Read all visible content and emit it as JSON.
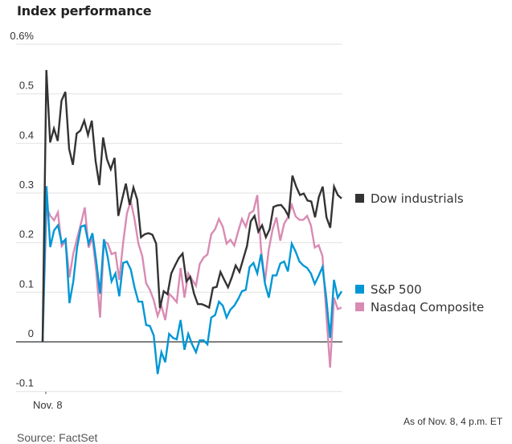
{
  "chart_data": {
    "type": "line",
    "title": "Index performance",
    "xlabel": "",
    "ylabel": "",
    "x_tick_labels": [
      "Nov. 8"
    ],
    "y_ticks": [
      -0.1,
      0,
      0.1,
      0.2,
      0.3,
      0.4,
      0.5,
      0.6
    ],
    "y_tick_labels": [
      "-0.1",
      "0",
      "0.1",
      "0.2",
      "0.3",
      "0.4",
      "0.5",
      "0.6%"
    ],
    "ylim": [
      -0.1,
      0.6
    ],
    "grid": true,
    "legend_placement": "right, beside line ends",
    "note": "As of Nov. 8, 4 p.m. ET",
    "source": "Source: FactSet",
    "series": [
      {
        "name": "Dow industrials",
        "color": "#333333",
        "values": [
          0,
          0.548,
          0.402,
          0.43,
          0.405,
          0.486,
          0.504,
          0.389,
          0.357,
          0.42,
          0.426,
          0.446,
          0.417,
          0.446,
          0.365,
          0.316,
          0.412,
          0.368,
          0.348,
          0.371,
          0.254,
          0.287,
          0.319,
          0.276,
          0.311,
          0.287,
          0.211,
          0.217,
          0.219,
          0.216,
          0.198,
          0.068,
          0.102,
          0.096,
          0.138,
          0.154,
          0.169,
          0.178,
          0.122,
          0.131,
          0.097,
          0.076,
          0.076,
          0.073,
          0.069,
          0.109,
          0.111,
          0.141,
          0.125,
          0.11,
          0.13,
          0.154,
          0.141,
          0.167,
          0.193,
          0.243,
          0.254,
          0.222,
          0.235,
          0.211,
          0.227,
          0.272,
          0.275,
          0.276,
          0.267,
          0.253,
          0.335,
          0.313,
          0.296,
          0.299,
          0.285,
          0.283,
          0.251,
          0.292,
          0.313,
          0.251,
          0.23,
          0.313,
          0.296,
          0.289
        ]
      },
      {
        "name": "S&P 500",
        "color": "#0097d6",
        "values": [
          0,
          0.314,
          0.191,
          0.225,
          0.235,
          0.199,
          0.207,
          0.078,
          0.122,
          0.19,
          0.232,
          0.235,
          0.198,
          0.219,
          0.162,
          0.097,
          0.207,
          0.17,
          0.122,
          0.138,
          0.092,
          0.159,
          0.162,
          0.146,
          0.109,
          0.081,
          0.081,
          0.034,
          0.032,
          0.013,
          -0.065,
          -0.021,
          -0.041,
          0.016,
          0.008,
          0.005,
          0.044,
          -0.016,
          0.016,
          -0.005,
          -0.021,
          0.003,
          0.003,
          -0.005,
          0.049,
          0.054,
          0.081,
          0.073,
          0.049,
          0.065,
          0.073,
          0.086,
          0.102,
          0.105,
          0.151,
          0.159,
          0.138,
          0.177,
          0.118,
          0.089,
          0.134,
          0.134,
          0.158,
          0.162,
          0.142,
          0.198,
          0.182,
          0.162,
          0.154,
          0.149,
          0.138,
          0.117,
          0.133,
          0.151,
          0.089,
          0.008,
          0.125,
          0.089,
          0.102
        ]
      },
      {
        "name": "Nasdaq Composite",
        "color": "#d98bb3",
        "values": [
          0,
          0.271,
          0.254,
          0.245,
          0.261,
          0.193,
          0.203,
          0.13,
          0.178,
          0.209,
          0.238,
          0.271,
          0.19,
          0.209,
          0.141,
          0.049,
          0.203,
          0.198,
          0.177,
          0.18,
          0.125,
          0.2,
          0.259,
          0.284,
          0.246,
          0.198,
          0.173,
          0.118,
          0.105,
          0.084,
          0.052,
          0.073,
          0.044,
          0.097,
          0.089,
          0.08,
          0.149,
          0.089,
          0.138,
          0.125,
          0.113,
          0.157,
          0.17,
          0.176,
          0.217,
          0.227,
          0.248,
          0.232,
          0.198,
          0.206,
          0.194,
          0.222,
          0.248,
          0.232,
          0.259,
          0.264,
          0.296,
          0.186,
          0.122,
          0.186,
          0.227,
          0.251,
          0.204,
          0.238,
          0.251,
          0.276,
          0.253,
          0.246,
          0.246,
          0.254,
          0.235,
          0.19,
          0.195,
          0.173,
          0.057,
          -0.052,
          0.089,
          0.066,
          0.069
        ]
      }
    ]
  }
}
